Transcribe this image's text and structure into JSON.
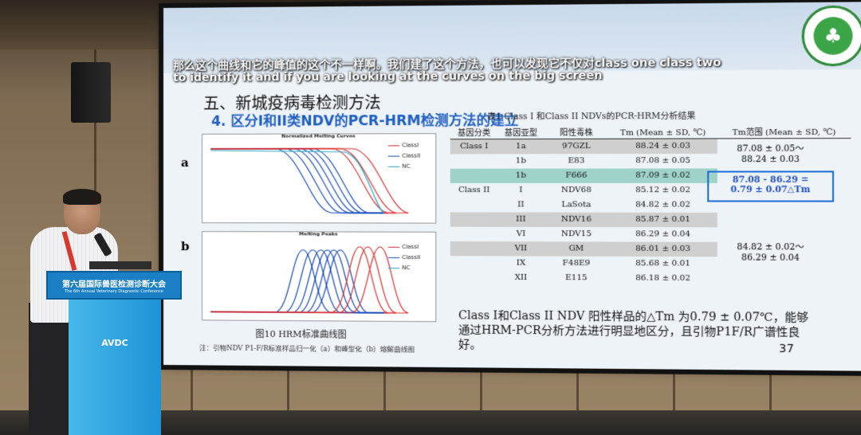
{
  "captions": {
    "line1": "那么这个曲线和它的峰值的这个不一样啊。我们建了这个方法，也可以发现它不仅对class one class two",
    "line2": "to identify it and if you are looking at the curves on the big screen"
  },
  "slide": {
    "title": "五、新城疫病毒检测方法",
    "subtitle": "4. 区分I和II类NDV的PCR-HRM检测方法的建立",
    "panel_a": "a",
    "panel_b": "b",
    "chart_a_title": "Normalized Melting Curves",
    "chart_b_title": "Melting Peaks",
    "legend": [
      "ClassI",
      "ClassII",
      "NC"
    ],
    "fig_caption": "图10 HRM标准曲线图",
    "fig_note": "注：引物NDV P1-F/R标准样品归一化（a）和峰型化（b）熔解曲线图",
    "table_caption": "表1 Class I 和Class II NDVs的PCR-HRM分析结果",
    "table_headers": [
      "基因分类",
      "基因亚型",
      "阳性毒株",
      "Tm (Mean ± SD, ℃)",
      "Tm范围 (Mean ± SD, ℃)"
    ],
    "rows": [
      {
        "cls": "Class I",
        "sub": "1a",
        "strain": "97GZL",
        "tm": "88.24 ± 0.03"
      },
      {
        "cls": "",
        "sub": "1b",
        "strain": "E83",
        "tm": "87.08 ± 0.05"
      },
      {
        "cls": "",
        "sub": "1b",
        "strain": "F666",
        "tm": "87.09 ± 0.02"
      },
      {
        "cls": "Class II",
        "sub": "I",
        "strain": "NDV68",
        "tm": "85.12 ± 0.02"
      },
      {
        "cls": "",
        "sub": "II",
        "strain": "LaSota",
        "tm": "84.82 ± 0.02"
      },
      {
        "cls": "",
        "sub": "III",
        "strain": "NDV16",
        "tm": "85.87 ± 0.01"
      },
      {
        "cls": "",
        "sub": "VI",
        "strain": "NDV15",
        "tm": "86.29 ± 0.04"
      },
      {
        "cls": "",
        "sub": "VII",
        "strain": "GM",
        "tm": "86.01 ± 0.03"
      },
      {
        "cls": "",
        "sub": "IX",
        "strain": "F48E9",
        "tm": "85.68 ± 0.01"
      },
      {
        "cls": "",
        "sub": "XII",
        "strain": "E115",
        "tm": "86.18 ± 0.02"
      }
    ],
    "range_class1_a": "87.08 ± 0.05～",
    "range_class1_b": "88.24 ± 0.03",
    "range_box_a": "87.08 - 86.29 =",
    "range_box_b": "0.79 ± 0.07△Tm",
    "range_class2_a": "84.82 ± 0.02～",
    "range_class2_b": "86.29 ± 0.04",
    "conclusion": "Class I和Class II NDV 阳性样品的△Tm 为0.79 ± 0.07℃，能够通过HRM-PCR分析方法进行明显地区分，且引物P1F/R广谱性良好。",
    "page_number": "37"
  },
  "podium": {
    "title": "第六届国际兽医检测诊断大会",
    "subtitle": "The 6th Annual Veterinary Diagnostic Conference",
    "brand": "AVDC"
  },
  "colors": {
    "class1": "#d33",
    "class2": "#1d4fbf",
    "nc": "#2aa7c7",
    "highlight": "#1f6fd6"
  }
}
